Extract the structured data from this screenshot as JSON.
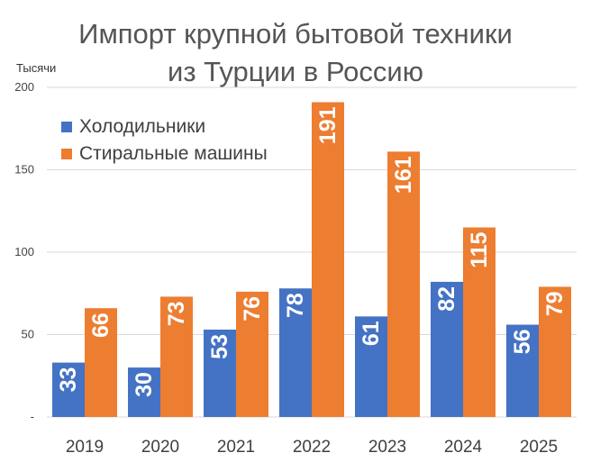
{
  "chart_data": {
    "type": "bar",
    "title_line1": "Импорт крупной бытовой техники",
    "title_line2": "из Турции в Россию",
    "ylabel": "Тысячи",
    "ylim": [
      0,
      200
    ],
    "yticks": [
      "-",
      "50",
      "100",
      "150",
      "200"
    ],
    "categories": [
      "2019",
      "2020",
      "2021",
      "2022",
      "2023",
      "2024",
      "2025"
    ],
    "series": [
      {
        "name": "Холодильники",
        "color": "#4472C4",
        "values": [
          33,
          30,
          53,
          78,
          61,
          82,
          56
        ],
        "labels": [
          "33",
          "30",
          "53",
          "78",
          "61",
          "82",
          "56"
        ]
      },
      {
        "name": "Стиральные машины",
        "color": "#ED7D31",
        "values": [
          66,
          73,
          76,
          191,
          161,
          115,
          79
        ],
        "labels": [
          "66",
          "73",
          "76",
          "191",
          "161",
          "115",
          "79"
        ]
      }
    ],
    "grid": true,
    "legend_position": "top-left"
  }
}
